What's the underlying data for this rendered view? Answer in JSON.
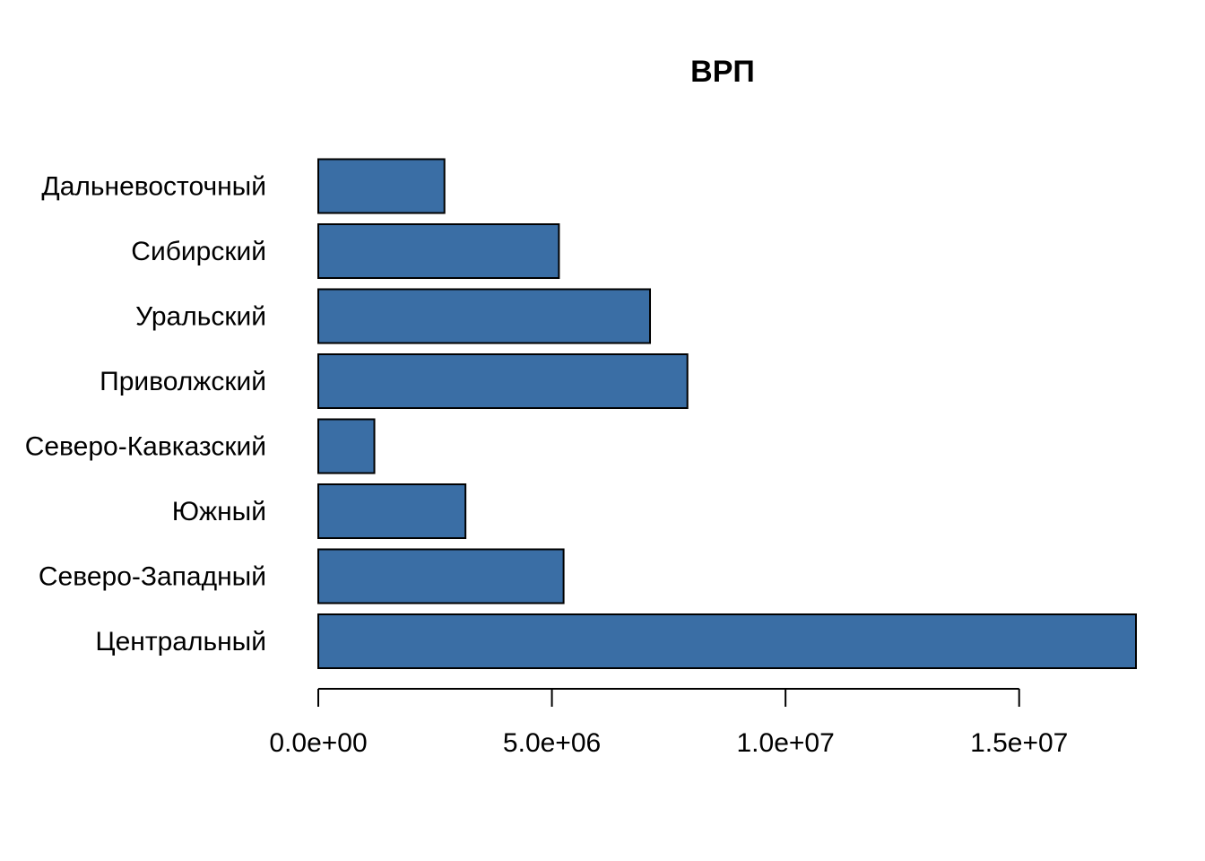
{
  "chart_data": {
    "type": "bar",
    "orientation": "horizontal",
    "title": "ВРП",
    "xlabel": "",
    "ylabel": "",
    "categories": [
      "Центральный",
      "Северо-Западный",
      "Южный",
      "Северо-Кавказский",
      "Приволжский",
      "Уральский",
      "Сибирский",
      "Дальневосточный"
    ],
    "values": [
      17500000,
      5250000,
      3150000,
      1200000,
      7900000,
      7100000,
      5150000,
      2700000
    ],
    "xlim": [
      0,
      17500000
    ],
    "xticks": [
      0,
      5000000,
      10000000,
      15000000
    ],
    "xtick_labels": [
      "0.0e+00",
      "5.0e+06",
      "1.0e+07",
      "1.5e+07"
    ],
    "grid": false,
    "legend": "none",
    "bar_color": "#3A6EA5",
    "bar_edge_color": "#000000"
  }
}
